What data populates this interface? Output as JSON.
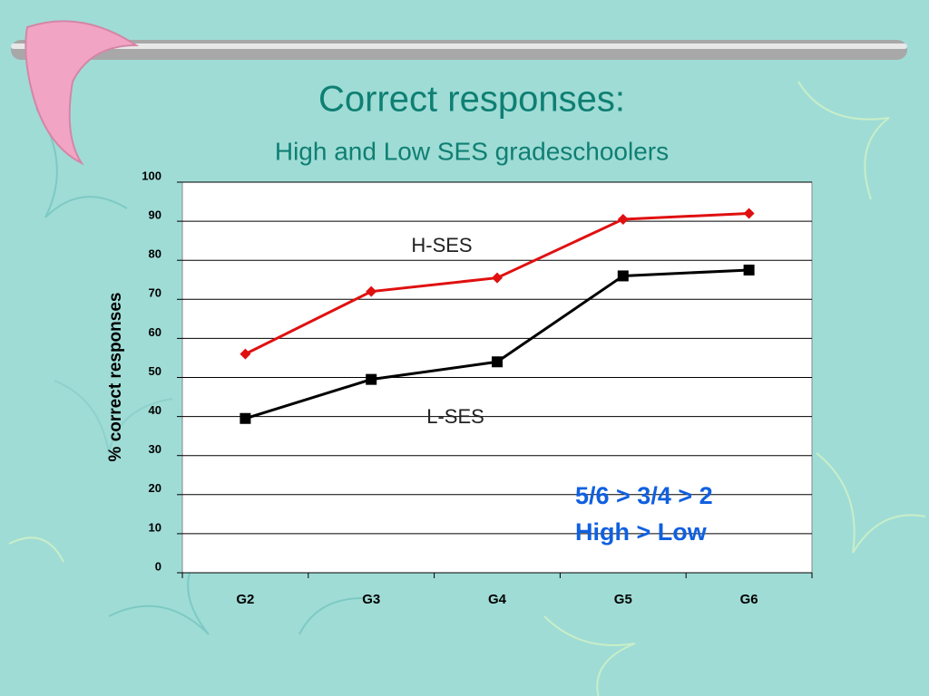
{
  "chart_data": {
    "type": "line",
    "title": "Correct responses:",
    "subtitle": "High and Low SES gradeschoolers",
    "y_label": "% correct responses",
    "categories": [
      "G2",
      "G3",
      "G4",
      "G5",
      "G6"
    ],
    "series": [
      {
        "name": "H-SES",
        "color": "#e01010",
        "marker": "diamond",
        "values": [
          56,
          72,
          75.5,
          90.5,
          92
        ]
      },
      {
        "name": "L-SES",
        "color": "#000000",
        "marker": "square",
        "values": [
          39.5,
          49.5,
          54,
          76,
          77.5
        ]
      }
    ],
    "ylim": [
      0,
      100
    ],
    "yticks": [
      0,
      10,
      20,
      30,
      40,
      50,
      60,
      70,
      80,
      90,
      100
    ],
    "grid": true,
    "annotations": [
      "5/6 > 3/4 > 2",
      "High > Low"
    ],
    "annotation_color": "#1060e0"
  }
}
